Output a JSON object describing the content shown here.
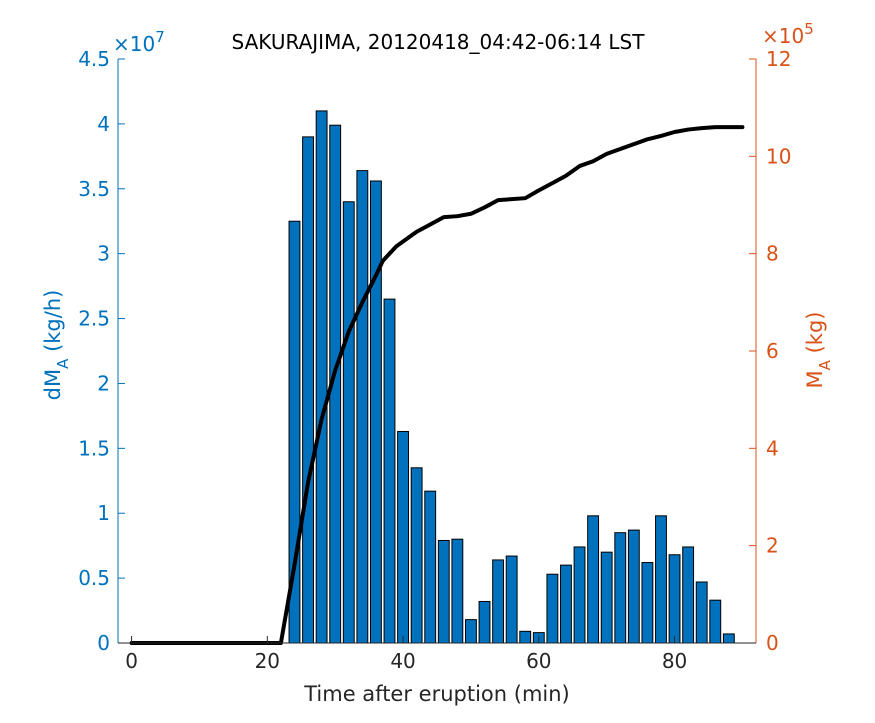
{
  "chart_data": {
    "type": "bar+line",
    "title": "SAKURAJIMA, 20120418_04:42-06:14 LST",
    "xlabel": "Time after eruption (min)",
    "ylabel_left": "dM_A (kg/h)",
    "ylabel_right": "M_A (kg)",
    "left_exponent_label": "×10^7",
    "right_exponent_label": "×10^5",
    "xlim": [
      -2,
      92
    ],
    "ylim_left": [
      0,
      4.5
    ],
    "ylim_right": [
      0,
      12
    ],
    "x_ticks": [
      "0",
      "20",
      "40",
      "60",
      "80"
    ],
    "y_left_ticks": [
      "0",
      "0.5",
      "1",
      "1.5",
      "2",
      "2.5",
      "3",
      "3.5",
      "4",
      "4.5"
    ],
    "y_right_ticks": [
      "0",
      "2",
      "4",
      "6",
      "8",
      "10",
      "12"
    ],
    "bar_series": {
      "name": "dM_A",
      "x": [
        24,
        26,
        28,
        30,
        32,
        34,
        36,
        38,
        40,
        42,
        44,
        46,
        48,
        50,
        52,
        54,
        56,
        58,
        60,
        62,
        64,
        66,
        68,
        70,
        72,
        74,
        76,
        78,
        80,
        82,
        84,
        86,
        88
      ],
      "values": [
        3.25,
        3.9,
        4.1,
        3.99,
        3.4,
        3.64,
        3.56,
        2.65,
        1.63,
        1.35,
        1.17,
        0.79,
        0.8,
        0.18,
        0.32,
        0.64,
        0.67,
        0.09,
        0.08,
        0.53,
        0.6,
        0.74,
        0.98,
        0.7,
        0.85,
        0.87,
        0.62,
        0.98,
        0.68,
        0.74,
        0.47,
        0.33,
        0.07
      ]
    },
    "line_series": {
      "name": "M_A",
      "x": [
        0,
        22,
        24,
        26,
        28,
        30,
        32,
        34,
        36,
        37,
        38,
        39,
        40,
        42,
        44,
        46,
        48,
        50,
        52,
        54,
        56,
        58,
        60,
        62,
        64,
        66,
        68,
        70,
        72,
        74,
        76,
        78,
        80,
        82,
        84,
        86,
        88,
        90
      ],
      "values": [
        0,
        0,
        1.6,
        3.3,
        4.6,
        5.6,
        6.4,
        7.0,
        7.55,
        7.85,
        8.0,
        8.15,
        8.25,
        8.45,
        8.6,
        8.75,
        8.77,
        8.82,
        8.95,
        9.1,
        9.12,
        9.14,
        9.3,
        9.45,
        9.6,
        9.8,
        9.9,
        10.05,
        10.15,
        10.25,
        10.35,
        10.42,
        10.5,
        10.55,
        10.58,
        10.6,
        10.6,
        10.6
      ]
    },
    "colors": {
      "bar_fill": "#0072BD",
      "bar_edge": "#000000",
      "line": "#000000",
      "left_axis": "#0072BD",
      "right_axis": "#D95319",
      "bottom_axis": "#262626"
    },
    "grid": false
  }
}
